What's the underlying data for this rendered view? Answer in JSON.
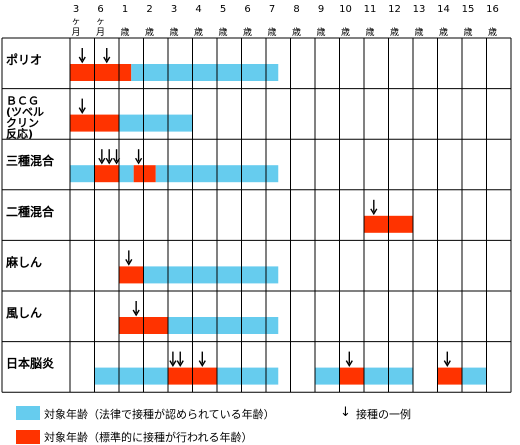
{
  "chart_data": {
    "type": "table",
    "columns": [
      {
        "num": "3",
        "unit": [
          "ヶ",
          "月"
        ]
      },
      {
        "num": "6",
        "unit": [
          "ヶ",
          "月"
        ]
      },
      {
        "num": "1",
        "unit": [
          "歳"
        ]
      },
      {
        "num": "2",
        "unit": [
          "歳"
        ]
      },
      {
        "num": "3",
        "unit": [
          "歳"
        ]
      },
      {
        "num": "4",
        "unit": [
          "歳"
        ]
      },
      {
        "num": "5",
        "unit": [
          "歳"
        ]
      },
      {
        "num": "6",
        "unit": [
          "歳"
        ]
      },
      {
        "num": "7",
        "unit": [
          "歳"
        ]
      },
      {
        "num": "8",
        "unit": [
          "歳"
        ]
      },
      {
        "num": "9",
        "unit": [
          "歳"
        ]
      },
      {
        "num": "10",
        "unit": [
          "歳"
        ]
      },
      {
        "num": "11",
        "unit": [
          "歳"
        ]
      },
      {
        "num": "12",
        "unit": [
          "歳"
        ]
      },
      {
        "num": "13",
        "unit": [
          "歳"
        ]
      },
      {
        "num": "14",
        "unit": [
          "歳"
        ]
      },
      {
        "num": "15",
        "unit": [
          "歳"
        ]
      },
      {
        "num": "16",
        "unit": [
          "歳"
        ]
      }
    ],
    "rows": [
      {
        "label": [
          "ポリオ"
        ],
        "segments": [
          {
            "type": "standard",
            "from": 0,
            "to": 2.5
          },
          {
            "type": "legal",
            "from": 2.5,
            "to": 8.5
          }
        ],
        "arrows": [
          0.5,
          1.5
        ]
      },
      {
        "label": [
          "ＢＣＧ",
          "(ツベル",
          "クリン",
          "反応)"
        ],
        "segments": [
          {
            "type": "standard",
            "from": 0,
            "to": 2
          },
          {
            "type": "legal",
            "from": 2,
            "to": 5
          }
        ],
        "arrows": [
          0.5
        ]
      },
      {
        "label": [
          "三種混合"
        ],
        "segments": [
          {
            "type": "legal",
            "from": 0,
            "to": 1
          },
          {
            "type": "standard",
            "from": 1,
            "to": 2
          },
          {
            "type": "legal",
            "from": 2,
            "to": 2.6
          },
          {
            "type": "standard",
            "from": 2.6,
            "to": 3.5
          },
          {
            "type": "legal",
            "from": 3.5,
            "to": 8.5
          }
        ],
        "arrows": [
          1.3,
          1.6,
          1.9,
          2.8
        ]
      },
      {
        "label": [
          "二種混合"
        ],
        "segments": [
          {
            "type": "standard",
            "from": 12,
            "to": 14
          }
        ],
        "arrows": [
          12.4
        ]
      },
      {
        "label": [
          "麻しん"
        ],
        "segments": [
          {
            "type": "standard",
            "from": 2,
            "to": 3
          },
          {
            "type": "legal",
            "from": 3,
            "to": 8.5
          }
        ],
        "arrows": [
          2.4
        ]
      },
      {
        "label": [
          "風しん"
        ],
        "segments": [
          {
            "type": "standard",
            "from": 2,
            "to": 4
          },
          {
            "type": "legal",
            "from": 4,
            "to": 8.5
          }
        ],
        "arrows": [
          2.7
        ]
      },
      {
        "label": [
          "日本脳炎"
        ],
        "segments": [
          {
            "type": "legal",
            "from": 1,
            "to": 4
          },
          {
            "type": "standard",
            "from": 4,
            "to": 6
          },
          {
            "type": "legal",
            "from": 6,
            "to": 8.5
          },
          {
            "type": "legal",
            "from": 10,
            "to": 11
          },
          {
            "type": "standard",
            "from": 11,
            "to": 12
          },
          {
            "type": "legal",
            "from": 12,
            "to": 14
          },
          {
            "type": "standard",
            "from": 15,
            "to": 16
          },
          {
            "type": "legal",
            "from": 16,
            "to": 17
          }
        ],
        "arrows": [
          4.2,
          4.5,
          5.4,
          11.4,
          15.4
        ]
      }
    ],
    "legend": {
      "legal": "対象年齢（法律で接種が認められている年齢）",
      "standard": "対象年齢（標準的に接種が行われる年齢）",
      "arrow_mark": "↓",
      "arrow": "接種の一例"
    },
    "colors": {
      "legal": "#66ccee",
      "standard": "#ff3300",
      "grid": "#000000"
    }
  }
}
